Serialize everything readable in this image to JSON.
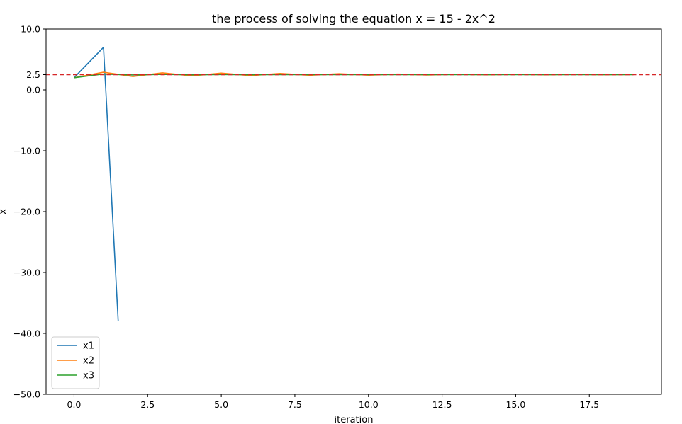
{
  "chart_data": {
    "type": "line",
    "title": "the process of solving the equation x = 15 - 2x^2",
    "xlabel": "iteration",
    "ylabel": "x",
    "xlim": [
      -0.95,
      19.95
    ],
    "ylim": [
      -50,
      10
    ],
    "xticks": [
      0.0,
      2.5,
      5.0,
      7.5,
      10.0,
      12.5,
      15.0,
      17.5
    ],
    "xtick_labels": [
      "0.0",
      "2.5",
      "5.0",
      "7.5",
      "10.0",
      "12.5",
      "15.0",
      "17.5"
    ],
    "yticks": [
      10.0,
      2.5,
      0.0,
      -10.0,
      -20.0,
      -30.0,
      -40.0,
      -50.0
    ],
    "ytick_labels": [
      "10.0",
      "2.5",
      "0.0",
      "−10.0",
      "−20.0",
      "−30.0",
      "−40.0",
      "−50.0"
    ],
    "reference_line": {
      "y": 2.5,
      "color": "#d62728",
      "style": "dashed"
    },
    "legend": {
      "position": "lower-left"
    },
    "grid": false,
    "series": [
      {
        "name": "x1",
        "color": "#1f77b4",
        "x": [
          0,
          1,
          1.5
        ],
        "y": [
          2.0,
          7.0,
          -38.0
        ]
      },
      {
        "name": "x2",
        "color": "#ff7f0e",
        "x": [
          0,
          1,
          2,
          3,
          4,
          5,
          6,
          7,
          8,
          9,
          10,
          11,
          12,
          13,
          14,
          15,
          16,
          17,
          18,
          19
        ],
        "y": [
          2.0,
          2.9,
          2.2,
          2.8,
          2.3,
          2.75,
          2.35,
          2.7,
          2.4,
          2.65,
          2.42,
          2.6,
          2.45,
          2.58,
          2.47,
          2.56,
          2.48,
          2.55,
          2.49,
          2.53
        ]
      },
      {
        "name": "x3",
        "color": "#2ca02c",
        "x": [
          0,
          1,
          2,
          3,
          4,
          5,
          6,
          7,
          8,
          9,
          10,
          11,
          12,
          13,
          14,
          15,
          16,
          17,
          18,
          19
        ],
        "y": [
          2.0,
          2.6,
          2.45,
          2.55,
          2.48,
          2.52,
          2.49,
          2.51,
          2.5,
          2.5,
          2.5,
          2.5,
          2.5,
          2.5,
          2.5,
          2.5,
          2.5,
          2.5,
          2.5,
          2.5
        ]
      }
    ]
  }
}
